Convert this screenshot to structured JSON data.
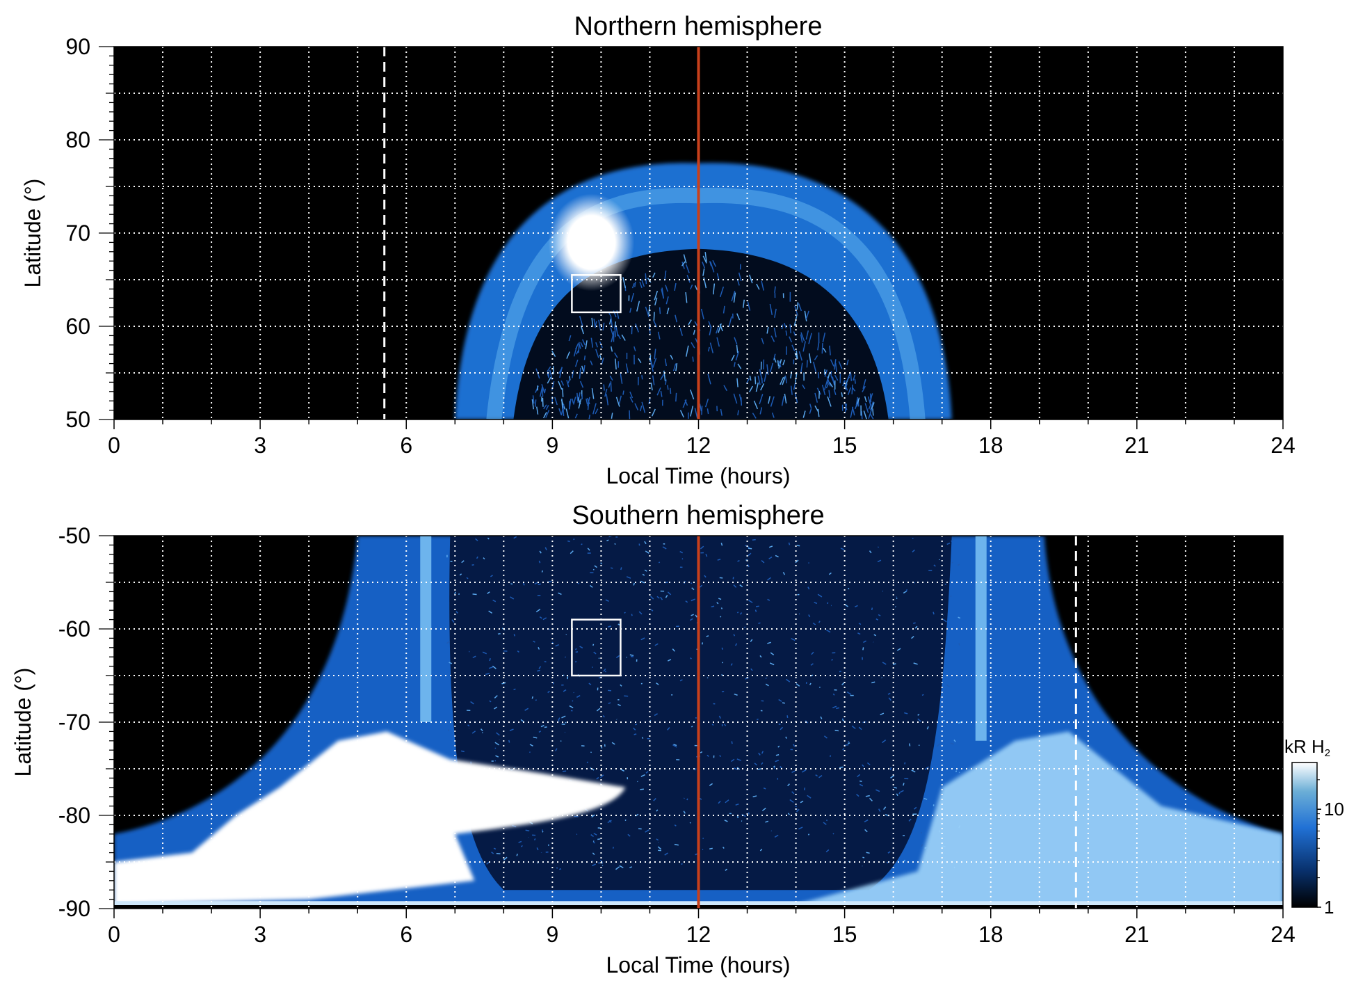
{
  "chart_data": [
    {
      "type": "heatmap",
      "title": "Northern hemisphere",
      "xlabel": "Local Time (hours)",
      "ylabel": "Latitude (°)",
      "xlim": [
        0,
        24
      ],
      "ylim": [
        50,
        90
      ],
      "x_ticks": [
        0,
        3,
        6,
        9,
        12,
        15,
        18,
        21,
        24
      ],
      "y_ticks": [
        50,
        60,
        70,
        80,
        90
      ],
      "grid": true,
      "noon_line_lt": 12,
      "dashed_line_lt": 5.55,
      "box": {
        "lt": [
          9.4,
          10.4
        ],
        "lat": [
          61.5,
          65.5
        ]
      },
      "auroral_oval": {
        "outer_lat_edge": 77,
        "inner_lat_edge": 68,
        "lt_extent_at_lat50": [
          7.0,
          17.2
        ],
        "bright_spot": {
          "lt": 9.8,
          "lat": 69,
          "brightness_kR": 30
        }
      }
    },
    {
      "type": "heatmap",
      "title": "Southern hemisphere",
      "xlabel": "Local Time (hours)",
      "ylabel": "Latitude (°)",
      "xlim": [
        0,
        24
      ],
      "ylim": [
        -90,
        -50
      ],
      "x_ticks": [
        0,
        3,
        6,
        9,
        12,
        15,
        18,
        21,
        24
      ],
      "y_ticks": [
        -90,
        -80,
        -70,
        -60,
        -50
      ],
      "grid": true,
      "noon_line_lt": 12,
      "dashed_line_lt": 19.75,
      "box": {
        "lt": [
          9.4,
          10.4
        ],
        "lat": [
          -65,
          -59
        ]
      },
      "auroral_oval": {
        "bright_band_lt": [
          6.4,
          17.8
        ],
        "dense_polar_lat_edge": -88,
        "bright_region_dawn": {
          "lt": [
            0,
            10.5
          ],
          "lat": [
            -90,
            -72
          ]
        }
      }
    }
  ],
  "colorbar": {
    "label": "kR H₂",
    "label_main": "kR H",
    "label_sub": "2",
    "scale": "log",
    "range": [
      1,
      30
    ],
    "tick_values": [
      1,
      10
    ],
    "tick_labels": [
      "1",
      "10"
    ],
    "colors": [
      "#000000",
      "#08306b",
      "#2171d5",
      "#6baed6",
      "#ffffff"
    ]
  },
  "colors": {
    "noon_line": "#c8401b",
    "grid": "#ffffff",
    "background": "#000000"
  }
}
